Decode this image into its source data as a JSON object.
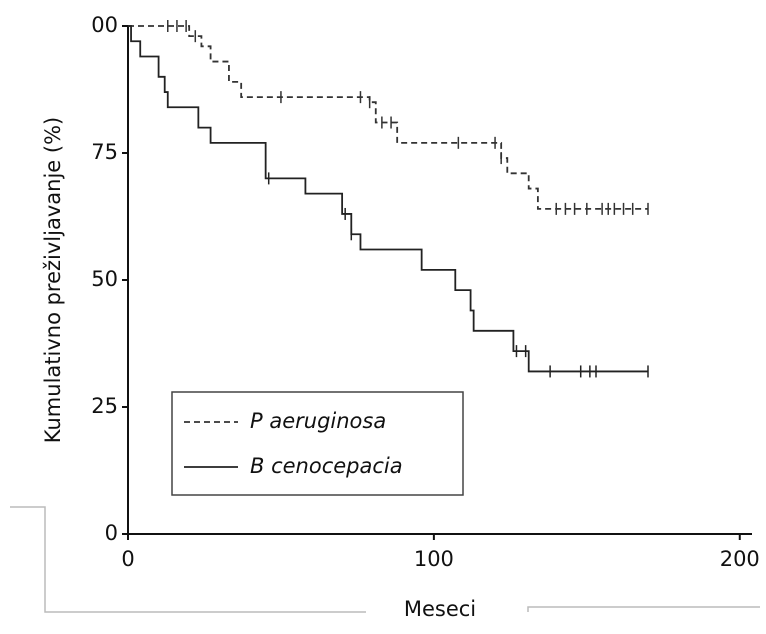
{
  "chart_data": {
    "type": "survival",
    "y_label": "Kumulativno preživljavanje (%)",
    "x_label": "Meseci",
    "xlim": [
      0,
      204
    ],
    "xticks": [
      0,
      100,
      200
    ],
    "ylim": [
      0,
      100
    ],
    "yticks": [
      0,
      25,
      50,
      75,
      {
        "value": 100,
        "label": "00"
      }
    ],
    "series": [
      {
        "name": "P aeruginosa",
        "color": "#333333",
        "dashed": true,
        "x": [
          0,
          20,
          24,
          27,
          33,
          37,
          79,
          81,
          88,
          122,
          124,
          131,
          134,
          170
        ],
        "values": [
          100,
          98,
          96,
          93,
          89,
          86,
          85,
          81,
          77,
          74,
          71,
          68,
          64,
          64
        ],
        "censored": [
          13,
          16,
          19,
          22,
          50,
          76,
          79,
          83,
          86,
          108,
          120,
          122,
          140,
          143,
          146,
          150,
          155,
          157,
          159,
          162,
          165,
          170
        ]
      },
      {
        "name": "B cenocepacia",
        "color": "#222222",
        "dashed": false,
        "x": [
          0,
          1,
          4,
          10,
          12,
          13,
          23,
          27,
          45,
          58,
          70,
          73,
          76,
          96,
          107,
          112,
          113,
          126,
          131,
          170
        ],
        "values": [
          100,
          97,
          94,
          90,
          87,
          84,
          80,
          77,
          70,
          67,
          63,
          59,
          56,
          52,
          48,
          44,
          40,
          36,
          32,
          32
        ],
        "censored": [
          46,
          71,
          73,
          127,
          130,
          138,
          148,
          151,
          153,
          170
        ]
      }
    ]
  }
}
